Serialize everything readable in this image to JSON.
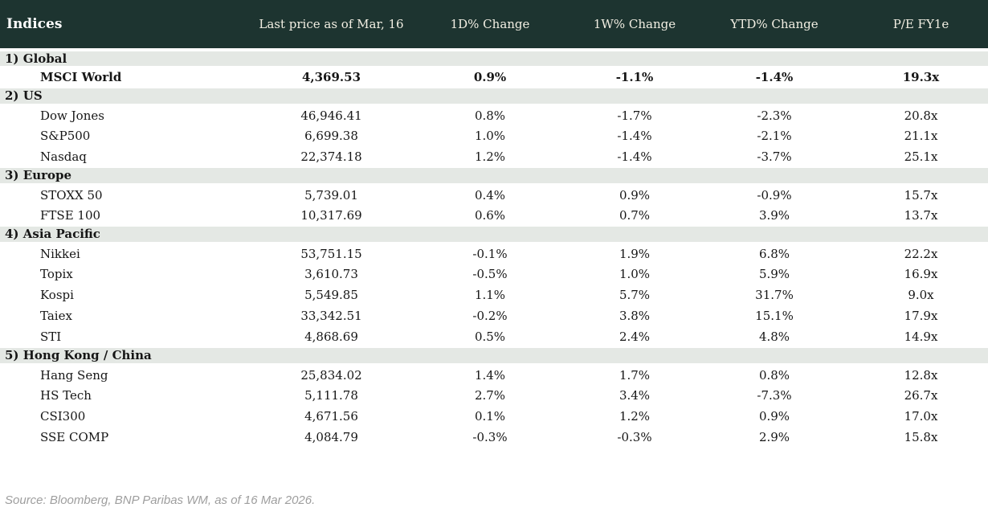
{
  "colors": {
    "header_bg": "#1d3430",
    "header_text": "#f2efe3",
    "band_bg": "#e4e8e4",
    "positive": "#008a23",
    "negative": "#c40000",
    "source_text": "#9e9e9e"
  },
  "chart_data": {
    "type": "table",
    "title": "Indices",
    "columns": [
      "Indices",
      "Last price as of Mar, 16",
      "1D% Change",
      "1W% Change",
      "YTD% Change",
      "P/E FY1e"
    ],
    "sections": [
      {
        "label": "1) Global",
        "rows": [
          {
            "name": "MSCI World",
            "price": "4,369.53",
            "d1": "0.9%",
            "w1": "-1.1%",
            "ytd": "-1.4%",
            "pe": "19.3x",
            "bold": true
          }
        ]
      },
      {
        "label": "2) US",
        "rows": [
          {
            "name": "Dow Jones",
            "price": "46,946.41",
            "d1": "0.8%",
            "w1": "-1.7%",
            "ytd": "-2.3%",
            "pe": "20.8x"
          },
          {
            "name": "S&P500",
            "price": "6,699.38",
            "d1": "1.0%",
            "w1": "-1.4%",
            "ytd": "-2.1%",
            "pe": "21.1x"
          },
          {
            "name": "Nasdaq",
            "price": "22,374.18",
            "d1": "1.2%",
            "w1": "-1.4%",
            "ytd": "-3.7%",
            "pe": "25.1x"
          }
        ]
      },
      {
        "label": "3) Europe",
        "rows": [
          {
            "name": "STOXX 50",
            "price": "5,739.01",
            "d1": "0.4%",
            "w1": "0.9%",
            "ytd": "-0.9%",
            "pe": "15.7x"
          },
          {
            "name": "FTSE 100",
            "price": "10,317.69",
            "d1": "0.6%",
            "w1": "0.7%",
            "ytd": "3.9%",
            "pe": "13.7x"
          }
        ]
      },
      {
        "label": "4) Asia Pacific",
        "rows": [
          {
            "name": "Nikkei",
            "price": "53,751.15",
            "d1": "-0.1%",
            "w1": "1.9%",
            "ytd": "6.8%",
            "pe": "22.2x"
          },
          {
            "name": "Topix",
            "price": "3,610.73",
            "d1": "-0.5%",
            "w1": "1.0%",
            "ytd": "5.9%",
            "pe": "16.9x"
          },
          {
            "name": "Kospi",
            "price": "5,549.85",
            "d1": "1.1%",
            "w1": "5.7%",
            "ytd": "31.7%",
            "pe": "9.0x"
          },
          {
            "name": "Taiex",
            "price": "33,342.51",
            "d1": "-0.2%",
            "w1": "3.8%",
            "ytd": "15.1%",
            "pe": "17.9x"
          },
          {
            "name": "STI",
            "price": "4,868.69",
            "d1": "0.5%",
            "w1": "2.4%",
            "ytd": "4.8%",
            "pe": "14.9x"
          }
        ]
      },
      {
        "label": "5) Hong Kong / China",
        "rows": [
          {
            "name": "Hang Seng",
            "price": "25,834.02",
            "d1": "1.4%",
            "w1": "1.7%",
            "ytd": "0.8%",
            "pe": "12.8x"
          },
          {
            "name": "HS Tech",
            "price": "5,111.78",
            "d1": "2.7%",
            "w1": "3.4%",
            "ytd": "-7.3%",
            "pe": "26.7x"
          },
          {
            "name": "CSI300",
            "price": "4,671.56",
            "d1": "0.1%",
            "w1": "1.2%",
            "ytd": "0.9%",
            "pe": "17.0x"
          },
          {
            "name": "SSE COMP",
            "price": "4,084.79",
            "d1": "-0.3%",
            "w1": "-0.3%",
            "ytd": "2.9%",
            "pe": "15.8x"
          }
        ]
      }
    ]
  },
  "footer": {
    "source": "Source: Bloomberg, BNP Paribas WM, as of 16 Mar 2026."
  }
}
